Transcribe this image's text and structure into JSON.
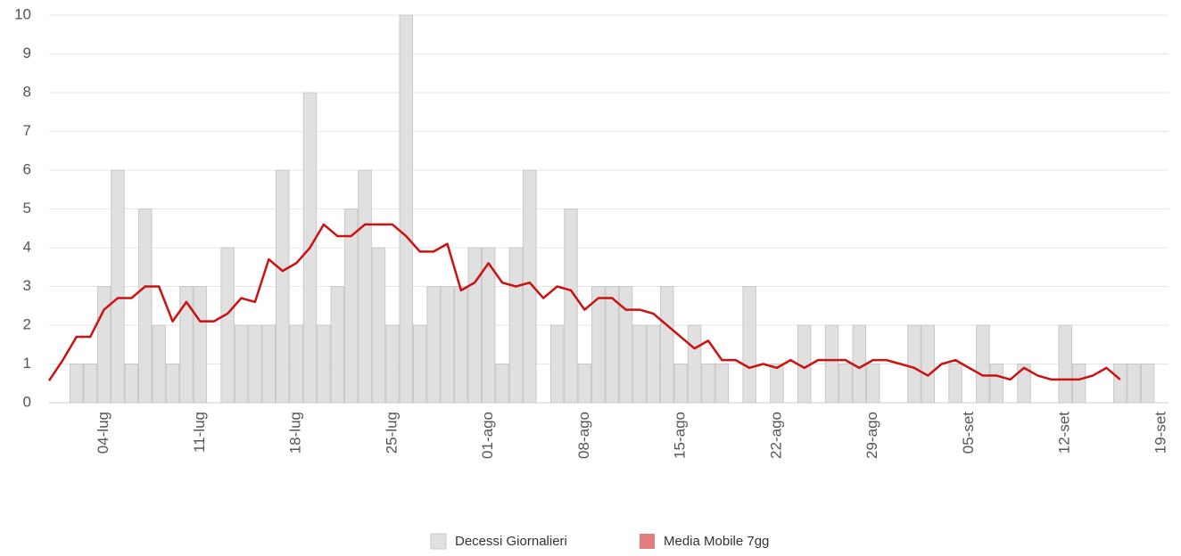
{
  "chart_data": {
    "type": "bar_line",
    "categories": [
      null,
      null,
      null,
      null,
      "04-lug",
      null,
      null,
      null,
      null,
      null,
      null,
      "11-lug",
      null,
      null,
      null,
      null,
      null,
      null,
      "18-lug",
      null,
      null,
      null,
      null,
      null,
      null,
      "25-lug",
      null,
      null,
      null,
      null,
      null,
      null,
      "01-ago",
      null,
      null,
      null,
      null,
      null,
      null,
      "08-ago",
      null,
      null,
      null,
      null,
      null,
      null,
      "15-ago",
      null,
      null,
      null,
      null,
      null,
      null,
      "22-ago",
      null,
      null,
      null,
      null,
      null,
      null,
      "29-ago",
      null,
      null,
      null,
      null,
      null,
      null,
      "05-set",
      null,
      null,
      null,
      null,
      null,
      null,
      "12-set",
      null,
      null,
      null,
      null,
      null,
      null,
      "19-set"
    ],
    "series": [
      {
        "name": "Decessi Giornalieri",
        "type": "bar",
        "color": "#e0e0e0",
        "values": [
          0,
          0,
          1,
          1,
          3,
          6,
          1,
          5,
          2,
          1,
          3,
          3,
          0,
          4,
          2,
          2,
          2,
          6,
          2,
          8,
          2,
          3,
          5,
          6,
          4,
          2,
          10,
          2,
          3,
          3,
          3,
          4,
          4,
          1,
          4,
          6,
          0,
          2,
          5,
          1,
          3,
          3,
          3,
          2,
          2,
          3,
          1,
          2,
          1,
          1,
          0,
          3,
          0,
          1,
          0,
          2,
          0,
          2,
          1,
          2,
          1,
          0,
          0,
          2,
          2,
          0,
          1,
          0,
          2,
          1,
          0,
          1,
          0,
          0,
          2,
          1,
          0,
          0,
          1,
          1,
          1,
          null
        ]
      },
      {
        "name": "Media Mobile 7gg",
        "type": "line",
        "color": "#cc1111",
        "values": [
          0.57,
          1.1,
          1.7,
          1.7,
          2.4,
          2.7,
          2.7,
          3.0,
          3.0,
          2.1,
          2.6,
          2.1,
          2.1,
          2.3,
          2.7,
          2.6,
          3.7,
          3.4,
          3.6,
          4.0,
          4.6,
          4.3,
          4.3,
          4.6,
          4.6,
          4.6,
          4.3,
          3.9,
          3.9,
          4.1,
          2.9,
          3.1,
          3.6,
          3.1,
          3.0,
          3.1,
          2.7,
          3.0,
          2.9,
          2.4,
          2.7,
          2.7,
          2.4,
          2.4,
          2.3,
          2.0,
          1.7,
          1.4,
          1.6,
          1.1,
          1.1,
          0.9,
          1.0,
          0.9,
          1.1,
          0.9,
          1.1,
          1.1,
          1.1,
          0.9,
          1.1,
          1.1,
          1.0,
          0.9,
          0.7,
          1.0,
          1.1,
          0.9,
          0.7,
          0.7,
          0.6,
          0.9,
          0.7,
          0.6,
          0.6,
          0.6,
          0.7,
          0.9,
          0.6,
          null,
          null,
          null
        ]
      }
    ],
    "ylim": [
      0,
      10
    ],
    "yticks": [
      0,
      1,
      2,
      3,
      4,
      5,
      6,
      7,
      8,
      9,
      10
    ],
    "grid": true,
    "legend": "bottom"
  }
}
